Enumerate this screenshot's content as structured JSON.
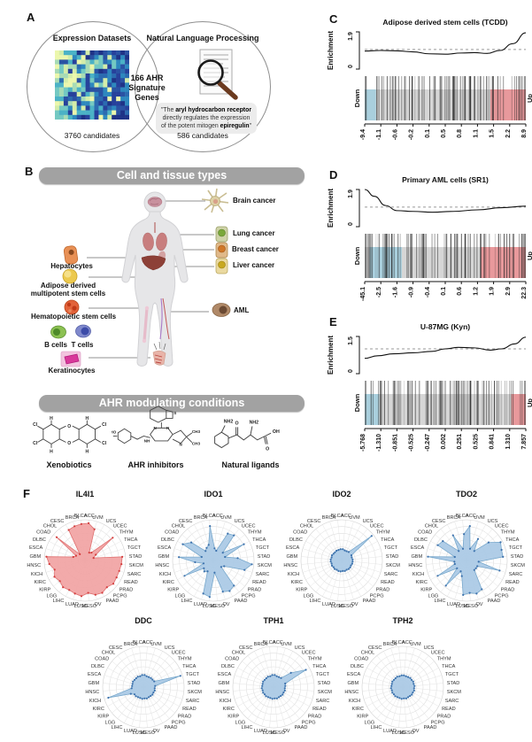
{
  "letters": {
    "A": "A",
    "B": "B",
    "C": "C",
    "D": "D",
    "E": "E",
    "F": "F"
  },
  "panelA": {
    "left_title": "Expression Datasets",
    "right_title": "Natural Language Processing",
    "center1": "166 AHR",
    "center2": "Signature",
    "center3": "Genes",
    "left_count": "3760 candidates",
    "right_count": "586 candidates",
    "quote_open": "\"The ",
    "quote_bold1": "aryl hydrocarbon receptor",
    "quote_mid": " directly regulates the expression of the potent mitogen ",
    "quote_bold2": "epiregulin",
    "quote_close": "\""
  },
  "panelB": {
    "header_cells": "Cell and tissue types",
    "header_conditions": "AHR modulating conditions",
    "items": {
      "brain": "Brain cancer",
      "lung": "Lung cancer",
      "breast": "Breast cancer",
      "liver": "Liver cancer",
      "aml": "AML",
      "hepatocytes": "Hepatocytes",
      "adipose1": "Adipose derived",
      "adipose2": "multipotent stem cells",
      "hsc": "Hematopoietic stem cells",
      "bcells": "B cells",
      "tcells": "T cells",
      "keratinocytes": "Keratinocytes",
      "xenobiotics": "Xenobiotics",
      "inhibitors": "AHR inhibitors",
      "ligands": "Natural ligands"
    },
    "chem": {
      "cl": "Cl",
      "o": "O",
      "ho": "HO",
      "n": "N",
      "nh": "NH",
      "s": "S",
      "ch3": "CH3",
      "nh2": "NH2",
      "oh": "OH",
      "h": "H"
    }
  },
  "chart_data": [
    {
      "id": "gseaC",
      "type": "line",
      "subtype": "gsea-barcode",
      "title": "Adipose derived stem cells (TCDD)",
      "ylabel": "Enrichment",
      "ylim": [
        0,
        1.9
      ],
      "yticks": [
        "0",
        "1.9"
      ],
      "dashed_y": 1.0,
      "curve": [
        [
          0,
          0.92
        ],
        [
          0.1,
          0.95
        ],
        [
          0.2,
          0.93
        ],
        [
          0.3,
          0.88
        ],
        [
          0.4,
          0.78
        ],
        [
          0.5,
          0.76
        ],
        [
          0.6,
          0.82
        ],
        [
          0.68,
          0.84
        ],
        [
          0.76,
          0.8
        ],
        [
          0.84,
          0.95
        ],
        [
          0.92,
          1.3
        ],
        [
          1,
          1.85
        ]
      ],
      "xticklabels": [
        "-9.4",
        "-1.1",
        "-0.6",
        "-0.2",
        "0.1",
        "0.5",
        "0.8",
        "1.1",
        "1.5",
        "2.2",
        "8.9"
      ],
      "down_label": "Down",
      "up_label": "Up",
      "blue_range": [
        0,
        0.07
      ],
      "red_range": [
        0.78,
        1
      ],
      "nlines": 95,
      "seed": 7
    },
    {
      "id": "gseaD",
      "type": "line",
      "subtype": "gsea-barcode",
      "title": "Primary AML cells (SR1)",
      "ylabel": "Enrichment",
      "ylim": [
        0,
        1.9
      ],
      "yticks": [
        "0",
        "1.9"
      ],
      "dashed_y": 1.0,
      "curve": [
        [
          0,
          1.9
        ],
        [
          0.06,
          1.55
        ],
        [
          0.13,
          1.08
        ],
        [
          0.2,
          0.82
        ],
        [
          0.3,
          0.78
        ],
        [
          0.42,
          0.74
        ],
        [
          0.55,
          0.78
        ],
        [
          0.7,
          0.86
        ],
        [
          0.85,
          0.97
        ],
        [
          1,
          1.05
        ]
      ],
      "xticklabels": [
        "-45.1",
        "-2.5",
        "-1.6",
        "-0.9",
        "-0.4",
        "0.1",
        "0.6",
        "1.2",
        "1.9",
        "2.9",
        "22.3"
      ],
      "down_label": "Down",
      "up_label": "Up",
      "blue_range": [
        0.03,
        0.23
      ],
      "red_range": [
        0.72,
        1
      ],
      "nlines": 110,
      "seed": 13
    },
    {
      "id": "gseaE",
      "type": "line",
      "subtype": "gsea-barcode",
      "title": "U-87MG (Kyn)",
      "ylabel": "Enrichment",
      "ylim": [
        0,
        1.5
      ],
      "yticks": [
        "0",
        "1.5"
      ],
      "dashed_y": 1.0,
      "curve": [
        [
          0,
          0.62
        ],
        [
          0.08,
          0.72
        ],
        [
          0.18,
          0.8
        ],
        [
          0.3,
          0.84
        ],
        [
          0.42,
          0.9
        ],
        [
          0.5,
          1.0
        ],
        [
          0.58,
          1.06
        ],
        [
          0.68,
          1.04
        ],
        [
          0.78,
          0.95
        ],
        [
          0.85,
          1.0
        ],
        [
          0.93,
          1.2
        ],
        [
          1,
          1.47
        ]
      ],
      "xticklabels": [
        "-5.768",
        "-1.310",
        "-0.851",
        "-0.525",
        "-0.247",
        "0.002",
        "0.251",
        "0.525",
        "0.841",
        "1.310",
        "7.857"
      ],
      "down_label": "Down",
      "up_label": "Up",
      "blue_range": [
        0,
        0.09
      ],
      "red_range": [
        0.91,
        1
      ],
      "nlines": 100,
      "seed": 21
    },
    {
      "id": "radar-IL4I1",
      "type": "radar",
      "title": "IL4I1",
      "fill": "#f1a3a3",
      "stroke": "#e07070",
      "dot": "#d43d3d",
      "categories": [
        "ACC",
        "UVM",
        "UCS",
        "UCEC",
        "THYM",
        "THCA",
        "TGCT",
        "STAD",
        "SKCM",
        "SARC",
        "READ",
        "PRAD",
        "PCPG",
        "PAAD",
        "OV",
        "MESO",
        "LUSC",
        "LUAD",
        "LIHC",
        "LGG",
        "KIRP",
        "KIRC",
        "KICH",
        "HNSC",
        "GBM",
        "ESCA",
        "DLBC",
        "COAD",
        "CHOL",
        "CESC",
        "BRCA",
        "BLCA"
      ],
      "values": [
        0.92,
        0.8,
        0.22,
        0.25,
        0.88,
        0.3,
        0.22,
        0.92,
        0.9,
        0.88,
        0.88,
        0.9,
        0.85,
        0.9,
        0.88,
        0.8,
        0.88,
        0.85,
        0.82,
        0.85,
        0.8,
        0.85,
        0.78,
        0.88,
        0.95,
        0.3,
        0.25,
        0.9,
        0.2,
        0.85,
        0.88,
        0.9
      ]
    },
    {
      "id": "radar-IDO1",
      "type": "radar",
      "title": "IDO1",
      "fill": "#a9c9e5",
      "stroke": "#78a8cc",
      "dot": "#3d72ad",
      "categories": [
        "ACC",
        "UVM",
        "UCS",
        "UCEC",
        "THYM",
        "THCA",
        "TGCT",
        "STAD",
        "SKCM",
        "SARC",
        "READ",
        "PRAD",
        "PCPG",
        "PAAD",
        "OV",
        "MESO",
        "LUSC",
        "LUAD",
        "LIHC",
        "LGG",
        "KIRP",
        "KIRC",
        "KICH",
        "HNSC",
        "GBM",
        "ESCA",
        "DLBC",
        "COAD",
        "CHOL",
        "CESC",
        "BRCA",
        "BLCA"
      ],
      "values": [
        0.3,
        0.25,
        0.75,
        0.8,
        0.3,
        0.85,
        0.3,
        0.6,
        0.95,
        0.8,
        0.3,
        0.25,
        0.8,
        0.85,
        0.8,
        0.3,
        0.9,
        0.85,
        0.3,
        0.35,
        0.3,
        0.8,
        0.25,
        0.45,
        0.85,
        0.3,
        0.85,
        0.7,
        0.3,
        0.35,
        0.4,
        0.85
      ]
    },
    {
      "id": "radar-IDO2",
      "type": "radar",
      "title": "IDO2",
      "fill": "#a9c9e5",
      "stroke": "#78a8cc",
      "dot": "#3d72ad",
      "categories": [
        "ACC",
        "UVM",
        "UCS",
        "UCEC",
        "THYM",
        "THCA",
        "TGCT",
        "STAD",
        "SKCM",
        "SARC",
        "READ",
        "PRAD",
        "PCPG",
        "PAAD",
        "OV",
        "MESO",
        "LUSC",
        "LUAD",
        "LIHC",
        "LGG",
        "KIRP",
        "KIRC",
        "KICH",
        "HNSC",
        "GBM",
        "ESCA",
        "DLBC",
        "COAD",
        "CHOL",
        "CESC",
        "BRCA",
        "BLCA"
      ],
      "values": [
        0.28,
        0.26,
        0.26,
        0.27,
        0.95,
        0.27,
        0.26,
        0.27,
        0.27,
        0.27,
        0.26,
        0.27,
        0.27,
        0.26,
        0.27,
        0.26,
        0.27,
        0.27,
        0.26,
        0.27,
        0.26,
        0.27,
        0.26,
        0.27,
        0.27,
        0.26,
        0.27,
        0.26,
        0.26,
        0.27,
        0.27,
        0.28
      ]
    },
    {
      "id": "radar-TDO2",
      "type": "radar",
      "title": "TDO2",
      "fill": "#a9c9e5",
      "stroke": "#78a8cc",
      "dot": "#3d72ad",
      "categories": [
        "ACC",
        "UVM",
        "UCS",
        "UCEC",
        "THYM",
        "THCA",
        "TGCT",
        "STAD",
        "SKCM",
        "SARC",
        "READ",
        "PRAD",
        "PCPG",
        "PAAD",
        "OV",
        "MESO",
        "LUSC",
        "LUAD",
        "LIHC",
        "LGG",
        "KIRP",
        "KIRC",
        "KICH",
        "HNSC",
        "GBM",
        "ESCA",
        "DLBC",
        "COAD",
        "CHOL",
        "CESC",
        "BRCA",
        "BLCA"
      ],
      "values": [
        0.85,
        0.3,
        0.6,
        0.3,
        0.7,
        0.95,
        0.9,
        0.9,
        0.3,
        0.85,
        0.3,
        0.3,
        0.3,
        0.8,
        0.85,
        0.8,
        0.85,
        0.4,
        0.3,
        0.8,
        0.3,
        0.8,
        0.3,
        0.3,
        0.95,
        0.3,
        0.8,
        0.75,
        0.3,
        0.7,
        0.3,
        0.65
      ]
    },
    {
      "id": "radar-DDC",
      "type": "radar",
      "title": "DDC",
      "fill": "#a9c9e5",
      "stroke": "#78a8cc",
      "dot": "#3d72ad",
      "categories": [
        "ACC",
        "UVM",
        "UCS",
        "UCEC",
        "THYM",
        "THCA",
        "TGCT",
        "STAD",
        "SKCM",
        "SARC",
        "READ",
        "PRAD",
        "PCPG",
        "PAAD",
        "OV",
        "MESO",
        "LUSC",
        "LUAD",
        "LIHC",
        "LGG",
        "KIRP",
        "KIRC",
        "KICH",
        "HNSC",
        "GBM",
        "ESCA",
        "DLBC",
        "COAD",
        "CHOL",
        "CESC",
        "BRCA",
        "BLCA"
      ],
      "values": [
        0.3,
        0.28,
        0.28,
        0.29,
        0.29,
        0.3,
        0.95,
        0.29,
        0.28,
        0.29,
        0.28,
        0.29,
        0.28,
        0.28,
        0.29,
        0.28,
        0.29,
        0.28,
        0.28,
        0.29,
        0.28,
        0.35,
        0.9,
        0.29,
        0.28,
        0.28,
        0.29,
        0.28,
        0.28,
        0.29,
        0.28,
        0.3
      ]
    },
    {
      "id": "radar-TPH1",
      "type": "radar",
      "title": "TPH1",
      "fill": "#a9c9e5",
      "stroke": "#78a8cc",
      "dot": "#3d72ad",
      "categories": [
        "ACC",
        "UVM",
        "UCS",
        "UCEC",
        "THYM",
        "THCA",
        "TGCT",
        "STAD",
        "SKCM",
        "SARC",
        "READ",
        "PRAD",
        "PCPG",
        "PAAD",
        "OV",
        "MESO",
        "LUSC",
        "LUAD",
        "LIHC",
        "LGG",
        "KIRP",
        "KIRC",
        "KICH",
        "HNSC",
        "GBM",
        "ESCA",
        "DLBC",
        "COAD",
        "CHOL",
        "CESC",
        "BRCA",
        "BLCA"
      ],
      "values": [
        0.3,
        0.28,
        0.28,
        0.29,
        0.55,
        0.9,
        0.3,
        0.29,
        0.28,
        0.29,
        0.28,
        0.29,
        0.28,
        0.28,
        0.29,
        0.28,
        0.29,
        0.28,
        0.28,
        0.29,
        0.28,
        0.29,
        0.28,
        0.29,
        0.28,
        0.28,
        0.29,
        0.28,
        0.28,
        0.29,
        0.28,
        0.3
      ]
    },
    {
      "id": "radar-TPH2",
      "type": "radar",
      "title": "TPH2",
      "fill": "#a9c9e5",
      "stroke": "#78a8cc",
      "dot": "#3d72ad",
      "categories": [
        "ACC",
        "UVM",
        "UCS",
        "UCEC",
        "THYM",
        "THCA",
        "TGCT",
        "STAD",
        "SKCM",
        "SARC",
        "READ",
        "PRAD",
        "PCPG",
        "PAAD",
        "OV",
        "MESO",
        "LUSC",
        "LUAD",
        "LIHC",
        "LGG",
        "KIRP",
        "KIRC",
        "KICH",
        "HNSC",
        "GBM",
        "ESCA",
        "DLBC",
        "COAD",
        "CHOL",
        "CESC",
        "BRCA",
        "BLCA"
      ],
      "values": [
        0.29,
        0.28,
        0.28,
        0.29,
        0.28,
        0.29,
        0.28,
        0.29,
        0.28,
        0.29,
        0.28,
        0.29,
        0.28,
        0.28,
        0.29,
        0.28,
        0.29,
        0.28,
        0.28,
        0.29,
        0.28,
        0.29,
        0.28,
        0.29,
        0.28,
        0.28,
        0.29,
        0.28,
        0.28,
        0.29,
        0.28,
        0.29
      ]
    },
    {
      "id": "venn-heatmap",
      "type": "heatmap",
      "title": "expression-heatmap-thumbnail",
      "palette_light": [
        "#ecf7ad",
        "#d3edaa",
        "#a7dbb6",
        "#74c9c2",
        "#4bb2c6"
      ],
      "palette_dark": [
        "#2e88be",
        "#2c6bb0",
        "#2a52a3",
        "#27419b",
        "#1f3387"
      ],
      "seed": 3,
      "cols": 17,
      "rows": 15
    }
  ]
}
